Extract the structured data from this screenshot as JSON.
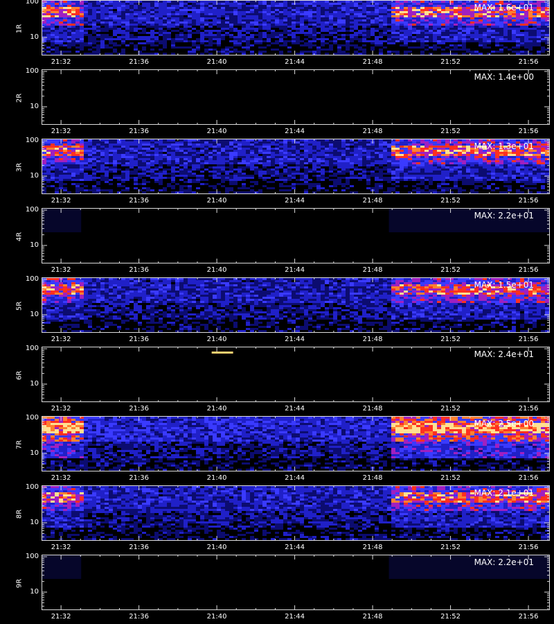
{
  "chart_data": [
    {
      "type": "heatmap",
      "panel_label": "1R",
      "y_scale": "log",
      "y_ticks": [
        "100",
        "10"
      ],
      "x_ticks": [
        "21:32",
        "21:36",
        "21:40",
        "21:44",
        "21:48",
        "21:52",
        "21:56"
      ],
      "max_label": "MAX: 1.6e+01",
      "intensity": "high",
      "x_range": [
        "21:31",
        "21:57"
      ]
    },
    {
      "type": "heatmap",
      "panel_label": "2R",
      "y_scale": "log",
      "y_ticks": [
        "100",
        "10"
      ],
      "x_ticks": [
        "21:32",
        "21:36",
        "21:40",
        "21:44",
        "21:48",
        "21:52",
        "21:56"
      ],
      "max_label": "MAX: 1.4e+00",
      "intensity": "none",
      "x_range": [
        "21:31",
        "21:57"
      ]
    },
    {
      "type": "heatmap",
      "panel_label": "3R",
      "y_scale": "log",
      "y_ticks": [
        "100",
        "10"
      ],
      "x_ticks": [
        "21:32",
        "21:36",
        "21:40",
        "21:44",
        "21:48",
        "21:52",
        "21:56"
      ],
      "max_label": "MAX: 1.3e+01",
      "intensity": "high",
      "x_range": [
        "21:31",
        "21:57"
      ]
    },
    {
      "type": "heatmap",
      "panel_label": "4R",
      "y_scale": "log",
      "y_ticks": [
        "100",
        "10"
      ],
      "x_ticks": [
        "21:32",
        "21:36",
        "21:40",
        "21:44",
        "21:48",
        "21:52",
        "21:56"
      ],
      "max_label": "MAX: 2.2e+01",
      "intensity": "faint",
      "x_range": [
        "21:31",
        "21:57"
      ]
    },
    {
      "type": "heatmap",
      "panel_label": "5R",
      "y_scale": "log",
      "y_ticks": [
        "100",
        "10"
      ],
      "x_ticks": [
        "21:32",
        "21:36",
        "21:40",
        "21:44",
        "21:48",
        "21:52",
        "21:56"
      ],
      "max_label": "MAX: 1.5e+01",
      "intensity": "high",
      "x_range": [
        "21:31",
        "21:57"
      ]
    },
    {
      "type": "heatmap",
      "panel_label": "6R",
      "y_scale": "log",
      "y_ticks": [
        "100",
        "10"
      ],
      "x_ticks": [
        "21:32",
        "21:36",
        "21:40",
        "21:44",
        "21:48",
        "21:52",
        "21:56"
      ],
      "max_label": "MAX: 2.4e+01",
      "intensity": "spike",
      "x_range": [
        "21:31",
        "21:57"
      ]
    },
    {
      "type": "heatmap",
      "panel_label": "7R",
      "y_scale": "log",
      "y_ticks": [
        "100",
        "10"
      ],
      "x_ticks": [
        "21:32",
        "21:36",
        "21:40",
        "21:44",
        "21:48",
        "21:52",
        "21:56"
      ],
      "max_label": "MAX: 2.5e+00",
      "intensity": "very-high",
      "x_range": [
        "21:31",
        "21:57"
      ]
    },
    {
      "type": "heatmap",
      "panel_label": "8R",
      "y_scale": "log",
      "y_ticks": [
        "100",
        "10"
      ],
      "x_ticks": [
        "21:32",
        "21:36",
        "21:40",
        "21:44",
        "21:48",
        "21:52",
        "21:56"
      ],
      "max_label": "MAX: 2.1e+01",
      "intensity": "high",
      "x_range": [
        "21:31",
        "21:57"
      ]
    },
    {
      "type": "heatmap",
      "panel_label": "9R",
      "y_scale": "log",
      "y_ticks": [
        "100",
        "10"
      ],
      "x_ticks": [
        "21:32",
        "21:36",
        "21:40",
        "21:44",
        "21:48",
        "21:52",
        "21:56"
      ],
      "max_label": "MAX: 2.2e+01",
      "intensity": "faint",
      "x_range": [
        "21:31",
        "21:57"
      ]
    }
  ],
  "colors": {
    "background": "#000000",
    "axis": "#dddddd",
    "text": "#ffffff",
    "low": "#0a0a6e",
    "mid": "#3030ff",
    "high": "#ff4020",
    "peak": "#ffe080"
  }
}
